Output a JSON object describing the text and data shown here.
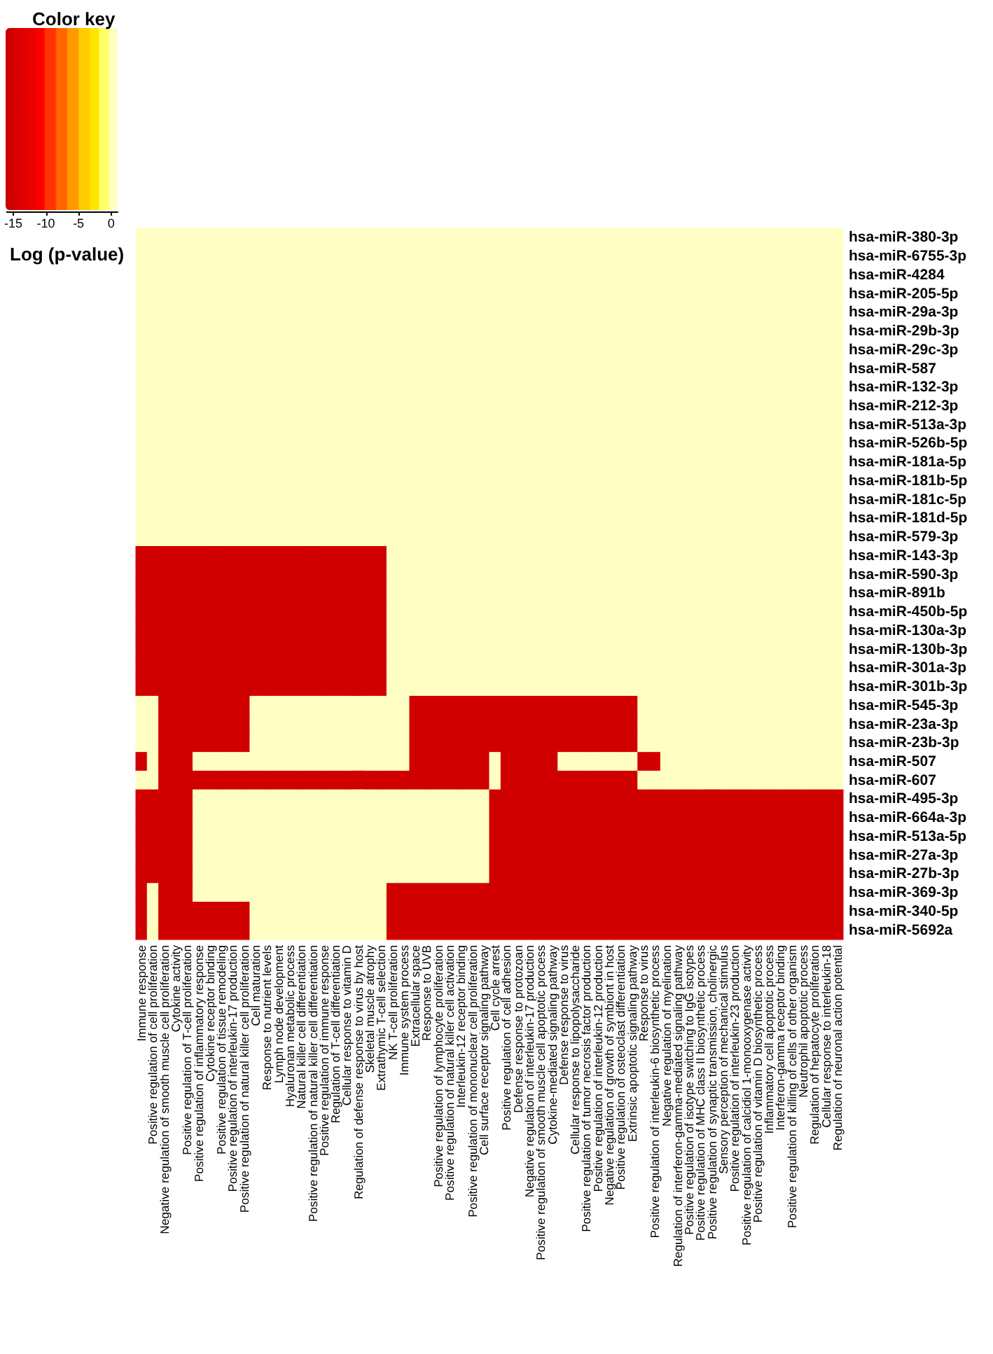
{
  "chart_data": {
    "type": "heatmap",
    "legend_title": "Color key",
    "clabel": "Log (p-value)",
    "clim": [
      -16,
      1
    ],
    "cticks": [
      -15,
      -10,
      -5,
      0
    ],
    "categories": [
      "Immune response",
      "Positive regulation of cell proliferation",
      "Negative regulation of smooth muscle cell proliferation",
      "Cytokine activity",
      "Positive regulation of T-cell proliferation",
      "Positive regulation of inflammatory response",
      "Cytokine receptor binding",
      "Positive regulation of tissue remodeling",
      "Positive regulation of interleukin-17 production",
      "Positive regulation of natural killer cell proliferation",
      "Cell maturation",
      "Response to nutrient levels",
      "Lymph node development",
      "Hyaluronan metabolic process",
      "Natural killer cell differentiation",
      "Positive regulation of natural killer cell differentiation",
      "Positive regulation of immune response",
      "Regulation of T-cell differentiation",
      "Cellular response to vitamin D",
      "Regulation of defense response to virus by host",
      "Skeletal muscle atrophy",
      "Extrathymic T-cell selection",
      "NK T-cell proliferation",
      "Immune system process",
      "Extracellular space",
      "Response to UVB",
      "Positive regulation of lymphocyte proliferation",
      "Positive regulation of natural killer cell activation",
      "Interleukin-12 receptor binding",
      "Positive regulation of mononuclear cell proliferation",
      "Cell surface receptor signaling pathway",
      "Cell cycle arrest",
      "Positive regulation of cell adhesion",
      "Defense response to protozoan",
      "Negative regulation of interleukin-17 production",
      "Positive regulation of smooth muscle cell apoptotic process",
      "Cytokine-mediated signaling pathway",
      "Defense response to virus",
      "Cellular response to lipopolysaccharide",
      "Positive regulation of tumor necrosis factor production",
      "Positive regulation of interleukin-12 production",
      "Negative regulation of growth of symbiont in host",
      "Positive regulation of osteoclast differentiation",
      "Extrinsic apoptotic signaling pathway",
      "Response to virus",
      "Positive regulation of interleukin-6 biosynthetic process",
      "Negative regulation of myelination",
      "Regulation of interferon-gamma-mediated signaling pathway",
      "Positive regulation of isotype switching to IgG isotypes",
      "Positive regulation of MHC class II biosynthetic process",
      "Positive regulation of synaptic transmission, cholinergic",
      "Sensory perception of mechanical stimulus",
      "Positive regulation of interleukin-23 production",
      "Positive regulation of calcidiol 1-monooxygenase activity",
      "Positive regulation of vitamin D biosynthetic process",
      "Inflammatory cell apoptotic process",
      "Interferon-gamma receptor binding",
      "Positive regulation of killing of cells of other organism",
      "Neutrophil apoptotic process",
      "Regulation of hepatocyte proliferation",
      "Cellular response to interleukin-18",
      "Regulation of neuronal action potential"
    ],
    "y_categories": [
      "hsa-miR-380-3p",
      "hsa-miR-6755-3p",
      "hsa-miR-4284",
      "hsa-miR-205-5p",
      "hsa-miR-29a-3p",
      "hsa-miR-29b-3p",
      "hsa-miR-29c-3p",
      "hsa-miR-587",
      "hsa-miR-132-3p",
      "hsa-miR-212-3p",
      "hsa-miR-513a-3p",
      "hsa-miR-526b-5p",
      "hsa-miR-181a-5p",
      "hsa-miR-181b-5p",
      "hsa-miR-181c-5p",
      "hsa-miR-181d-5p",
      "hsa-miR-579-3p",
      "hsa-miR-143-3p",
      "hsa-miR-590-3p",
      "hsa-miR-891b",
      "hsa-miR-450b-5p",
      "hsa-miR-130a-3p",
      "hsa-miR-130b-3p",
      "hsa-miR-301a-3p",
      "hsa-miR-301b-3p",
      "hsa-miR-545-3p",
      "hsa-miR-23a-3p",
      "hsa-miR-23b-3p",
      "hsa-miR-507",
      "hsa-miR-607",
      "hsa-miR-495-3p",
      "hsa-miR-664a-3p",
      "hsa-miR-513a-5p",
      "hsa-miR-27a-3p",
      "hsa-miR-27b-3p",
      "hsa-miR-369-3p",
      "hsa-miR-340-5p",
      "hsa-miR-5692a"
    ],
    "cells": [
      [
        0,
        0,
        0,
        0,
        0,
        0,
        0,
        0,
        0,
        0,
        0,
        0,
        0,
        0,
        0,
        0,
        0,
        0,
        0,
        0,
        0,
        0,
        0,
        0,
        0,
        0,
        0,
        0,
        0,
        0,
        0,
        0,
        0,
        0,
        0,
        0,
        0,
        0,
        0,
        0,
        0,
        0,
        0,
        0,
        0,
        0,
        0,
        0,
        0,
        0,
        0,
        0,
        0,
        0,
        0,
        0,
        0,
        0,
        0,
        0,
        0,
        0
      ],
      [
        0,
        0,
        0,
        0,
        0,
        0,
        0,
        0,
        0,
        0,
        0,
        0,
        0,
        0,
        0,
        0,
        0,
        0,
        0,
        0,
        0,
        0,
        0,
        0,
        0,
        0,
        0,
        0,
        0,
        0,
        0,
        0,
        0,
        0,
        0,
        0,
        0,
        0,
        0,
        0,
        0,
        0,
        0,
        0,
        0,
        0,
        0,
        0,
        0,
        0,
        0,
        0,
        0,
        0,
        0,
        0,
        0,
        0,
        0,
        0,
        0,
        0
      ],
      [
        0,
        0,
        0,
        0,
        0,
        0,
        0,
        0,
        0,
        0,
        0,
        0,
        0,
        0,
        0,
        0,
        0,
        0,
        0,
        0,
        0,
        0,
        0,
        0,
        0,
        0,
        0,
        0,
        0,
        0,
        0,
        0,
        0,
        0,
        0,
        0,
        0,
        0,
        0,
        0,
        0,
        0,
        0,
        0,
        0,
        0,
        0,
        0,
        0,
        0,
        0,
        0,
        0,
        0,
        0,
        0,
        0,
        0,
        0,
        0,
        0,
        0
      ],
      [
        0,
        0,
        0,
        0,
        0,
        0,
        0,
        0,
        0,
        0,
        0,
        0,
        0,
        0,
        0,
        0,
        0,
        0,
        0,
        0,
        0,
        0,
        0,
        0,
        0,
        0,
        0,
        0,
        0,
        0,
        0,
        0,
        0,
        0,
        0,
        0,
        0,
        0,
        0,
        0,
        0,
        0,
        0,
        0,
        0,
        0,
        0,
        0,
        0,
        0,
        0,
        0,
        0,
        0,
        0,
        0,
        0,
        0,
        0,
        0,
        0,
        0
      ],
      [
        0,
        0,
        0,
        0,
        0,
        0,
        0,
        0,
        0,
        0,
        0,
        0,
        0,
        0,
        0,
        0,
        0,
        0,
        0,
        0,
        0,
        0,
        0,
        0,
        0,
        0,
        0,
        0,
        0,
        0,
        0,
        0,
        0,
        0,
        0,
        0,
        0,
        0,
        0,
        0,
        0,
        0,
        0,
        0,
        0,
        0,
        0,
        0,
        0,
        0,
        0,
        0,
        0,
        0,
        0,
        0,
        0,
        0,
        0,
        0,
        0,
        0
      ],
      [
        0,
        0,
        0,
        0,
        0,
        0,
        0,
        0,
        0,
        0,
        0,
        0,
        0,
        0,
        0,
        0,
        0,
        0,
        0,
        0,
        0,
        0,
        0,
        0,
        0,
        0,
        0,
        0,
        0,
        0,
        0,
        0,
        0,
        0,
        0,
        0,
        0,
        0,
        0,
        0,
        0,
        0,
        0,
        0,
        0,
        0,
        0,
        0,
        0,
        0,
        0,
        0,
        0,
        0,
        0,
        0,
        0,
        0,
        0,
        0,
        0,
        0
      ],
      [
        0,
        0,
        0,
        0,
        0,
        0,
        0,
        0,
        0,
        0,
        0,
        0,
        0,
        0,
        0,
        0,
        0,
        0,
        0,
        0,
        0,
        0,
        0,
        0,
        0,
        0,
        0,
        0,
        0,
        0,
        0,
        0,
        0,
        0,
        0,
        0,
        0,
        0,
        0,
        0,
        0,
        0,
        0,
        0,
        0,
        0,
        0,
        0,
        0,
        0,
        0,
        0,
        0,
        0,
        0,
        0,
        0,
        0,
        0,
        0,
        0,
        0
      ],
      [
        0,
        0,
        0,
        0,
        0,
        0,
        0,
        0,
        0,
        0,
        0,
        0,
        0,
        0,
        0,
        0,
        0,
        0,
        0,
        0,
        0,
        0,
        0,
        0,
        0,
        0,
        0,
        0,
        0,
        0,
        0,
        0,
        0,
        0,
        0,
        0,
        0,
        0,
        0,
        0,
        0,
        0,
        0,
        0,
        0,
        0,
        0,
        0,
        0,
        0,
        0,
        0,
        0,
        0,
        0,
        0,
        0,
        0,
        0,
        0,
        0,
        0
      ],
      [
        0,
        0,
        0,
        0,
        0,
        0,
        0,
        0,
        0,
        0,
        0,
        0,
        0,
        0,
        0,
        0,
        0,
        0,
        0,
        0,
        0,
        0,
        0,
        0,
        0,
        0,
        0,
        0,
        0,
        0,
        0,
        0,
        0,
        0,
        0,
        0,
        0,
        0,
        0,
        0,
        0,
        0,
        0,
        0,
        0,
        0,
        0,
        0,
        0,
        0,
        0,
        0,
        0,
        0,
        0,
        0,
        0,
        0,
        0,
        0,
        0,
        0
      ],
      [
        0,
        0,
        0,
        0,
        0,
        0,
        0,
        0,
        0,
        0,
        0,
        0,
        0,
        0,
        0,
        0,
        0,
        0,
        0,
        0,
        0,
        0,
        0,
        0,
        0,
        0,
        0,
        0,
        0,
        0,
        0,
        0,
        0,
        0,
        0,
        0,
        0,
        0,
        0,
        0,
        0,
        0,
        0,
        0,
        0,
        0,
        0,
        0,
        0,
        0,
        0,
        0,
        0,
        0,
        0,
        0,
        0,
        0,
        0,
        0,
        0,
        0
      ],
      [
        0,
        0,
        0,
        0,
        0,
        0,
        0,
        0,
        0,
        0,
        0,
        0,
        0,
        0,
        0,
        0,
        0,
        0,
        0,
        0,
        0,
        0,
        0,
        0,
        0,
        0,
        0,
        0,
        0,
        0,
        0,
        0,
        0,
        0,
        0,
        0,
        0,
        0,
        0,
        0,
        0,
        0,
        0,
        0,
        0,
        0,
        0,
        0,
        0,
        0,
        0,
        0,
        0,
        0,
        0,
        0,
        0,
        0,
        0,
        0,
        0,
        0
      ],
      [
        0,
        0,
        0,
        0,
        0,
        0,
        0,
        0,
        0,
        0,
        0,
        0,
        0,
        0,
        0,
        0,
        0,
        0,
        0,
        0,
        0,
        0,
        0,
        0,
        0,
        0,
        0,
        0,
        0,
        0,
        0,
        0,
        0,
        0,
        0,
        0,
        0,
        0,
        0,
        0,
        0,
        0,
        0,
        0,
        0,
        0,
        0,
        0,
        0,
        0,
        0,
        0,
        0,
        0,
        0,
        0,
        0,
        0,
        0,
        0,
        0,
        0
      ],
      [
        0,
        0,
        0,
        0,
        0,
        0,
        0,
        0,
        0,
        0,
        0,
        0,
        0,
        0,
        0,
        0,
        0,
        0,
        0,
        0,
        0,
        0,
        0,
        0,
        0,
        0,
        0,
        0,
        0,
        0,
        0,
        0,
        0,
        0,
        0,
        0,
        0,
        0,
        0,
        0,
        0,
        0,
        0,
        0,
        0,
        0,
        0,
        0,
        0,
        0,
        0,
        0,
        0,
        0,
        0,
        0,
        0,
        0,
        0,
        0,
        0,
        0
      ],
      [
        0,
        0,
        0,
        0,
        0,
        0,
        0,
        0,
        0,
        0,
        0,
        0,
        0,
        0,
        0,
        0,
        0,
        0,
        0,
        0,
        0,
        0,
        0,
        0,
        0,
        0,
        0,
        0,
        0,
        0,
        0,
        0,
        0,
        0,
        0,
        0,
        0,
        0,
        0,
        0,
        0,
        0,
        0,
        0,
        0,
        0,
        0,
        0,
        0,
        0,
        0,
        0,
        0,
        0,
        0,
        0,
        0,
        0,
        0,
        0,
        0,
        0
      ],
      [
        0,
        0,
        0,
        0,
        0,
        0,
        0,
        0,
        0,
        0,
        0,
        0,
        0,
        0,
        0,
        0,
        0,
        0,
        0,
        0,
        0,
        0,
        0,
        0,
        0,
        0,
        0,
        0,
        0,
        0,
        0,
        0,
        0,
        0,
        0,
        0,
        0,
        0,
        0,
        0,
        0,
        0,
        0,
        0,
        0,
        0,
        0,
        0,
        0,
        0,
        0,
        0,
        0,
        0,
        0,
        0,
        0,
        0,
        0,
        0,
        0,
        0
      ],
      [
        0,
        0,
        0,
        0,
        0,
        0,
        0,
        0,
        0,
        0,
        0,
        0,
        0,
        0,
        0,
        0,
        0,
        0,
        0,
        0,
        0,
        0,
        0,
        0,
        0,
        0,
        0,
        0,
        0,
        0,
        0,
        0,
        0,
        0,
        0,
        0,
        0,
        0,
        0,
        0,
        0,
        0,
        0,
        0,
        0,
        0,
        0,
        0,
        0,
        0,
        0,
        0,
        0,
        0,
        0,
        0,
        0,
        0,
        0,
        0,
        0,
        0
      ],
      [
        0,
        0,
        0,
        0,
        0,
        0,
        0,
        0,
        0,
        0,
        0,
        0,
        0,
        0,
        0,
        0,
        0,
        0,
        0,
        0,
        0,
        0,
        0,
        0,
        0,
        0,
        0,
        0,
        0,
        0,
        0,
        0,
        0,
        0,
        0,
        0,
        0,
        0,
        0,
        0,
        0,
        0,
        0,
        0,
        0,
        0,
        0,
        0,
        0,
        0,
        0,
        0,
        0,
        0,
        0,
        0,
        0,
        0,
        0,
        0,
        0,
        0
      ],
      [
        -15,
        -15,
        -15,
        -15,
        -15,
        -15,
        -15,
        -15,
        -15,
        -15,
        -15,
        -15,
        -15,
        -15,
        -15,
        -15,
        -15,
        -15,
        -15,
        -15,
        -15,
        -15,
        0,
        0,
        0,
        0,
        0,
        0,
        0,
        0,
        0,
        0,
        0,
        0,
        0,
        0,
        0,
        0,
        0,
        0,
        0,
        0,
        0,
        0,
        0,
        0,
        0,
        0,
        0,
        0,
        0,
        0,
        0,
        0,
        0,
        0,
        0,
        0,
        0,
        0,
        0,
        0
      ],
      [
        -15,
        -15,
        -15,
        -15,
        -15,
        -15,
        -15,
        -15,
        -15,
        -15,
        -15,
        -15,
        -15,
        -15,
        -15,
        -15,
        -15,
        -15,
        -15,
        -15,
        -15,
        -15,
        0,
        0,
        0,
        0,
        0,
        0,
        0,
        0,
        0,
        0,
        0,
        0,
        0,
        0,
        0,
        0,
        0,
        0,
        0,
        0,
        0,
        0,
        0,
        0,
        0,
        0,
        0,
        0,
        0,
        0,
        0,
        0,
        0,
        0,
        0,
        0,
        0,
        0,
        0,
        0
      ],
      [
        -15,
        -15,
        -15,
        -15,
        -15,
        -15,
        -15,
        -15,
        -15,
        -15,
        -15,
        -15,
        -15,
        -15,
        -15,
        -15,
        -15,
        -15,
        -15,
        -15,
        -15,
        -15,
        0,
        0,
        0,
        0,
        0,
        0,
        0,
        0,
        0,
        0,
        0,
        0,
        0,
        0,
        0,
        0,
        0,
        0,
        0,
        0,
        0,
        0,
        0,
        0,
        0,
        0,
        0,
        0,
        0,
        0,
        0,
        0,
        0,
        0,
        0,
        0,
        0,
        0,
        0,
        0
      ],
      [
        -15,
        -15,
        -15,
        -15,
        -15,
        -15,
        -15,
        -15,
        -15,
        -15,
        -15,
        -15,
        -15,
        -15,
        -15,
        -15,
        -15,
        -15,
        -15,
        -15,
        -15,
        -15,
        0,
        0,
        0,
        0,
        0,
        0,
        0,
        0,
        0,
        0,
        0,
        0,
        0,
        0,
        0,
        0,
        0,
        0,
        0,
        0,
        0,
        0,
        0,
        0,
        0,
        0,
        0,
        0,
        0,
        0,
        0,
        0,
        0,
        0,
        0,
        0,
        0,
        0,
        0,
        0
      ],
      [
        -15,
        -15,
        -15,
        -15,
        -15,
        -15,
        -15,
        -15,
        -15,
        -15,
        -15,
        -15,
        -15,
        -15,
        -15,
        -15,
        -15,
        -15,
        -15,
        -15,
        -15,
        -15,
        0,
        0,
        0,
        0,
        0,
        0,
        0,
        0,
        0,
        0,
        0,
        0,
        0,
        0,
        0,
        0,
        0,
        0,
        0,
        0,
        0,
        0,
        0,
        0,
        0,
        0,
        0,
        0,
        0,
        0,
        0,
        0,
        0,
        0,
        0,
        0,
        0,
        0,
        0,
        0
      ],
      [
        -15,
        -15,
        -15,
        -15,
        -15,
        -15,
        -15,
        -15,
        -15,
        -15,
        -15,
        -15,
        -15,
        -15,
        -15,
        -15,
        -15,
        -15,
        -15,
        -15,
        -15,
        -15,
        0,
        0,
        0,
        0,
        0,
        0,
        0,
        0,
        0,
        0,
        0,
        0,
        0,
        0,
        0,
        0,
        0,
        0,
        0,
        0,
        0,
        0,
        0,
        0,
        0,
        0,
        0,
        0,
        0,
        0,
        0,
        0,
        0,
        0,
        0,
        0,
        0,
        0,
        0,
        0
      ],
      [
        -15,
        -15,
        -15,
        -15,
        -15,
        -15,
        -15,
        -15,
        -15,
        -15,
        -15,
        -15,
        -15,
        -15,
        -15,
        -15,
        -15,
        -15,
        -15,
        -15,
        -15,
        -15,
        0,
        0,
        0,
        0,
        0,
        0,
        0,
        0,
        0,
        0,
        0,
        0,
        0,
        0,
        0,
        0,
        0,
        0,
        0,
        0,
        0,
        0,
        0,
        0,
        0,
        0,
        0,
        0,
        0,
        0,
        0,
        0,
        0,
        0,
        0,
        0,
        0,
        0,
        0,
        0
      ],
      [
        -15,
        -15,
        -15,
        -15,
        -15,
        -15,
        -15,
        -15,
        -15,
        -15,
        -15,
        -15,
        -15,
        -15,
        -15,
        -15,
        -15,
        -15,
        -15,
        -15,
        -15,
        -15,
        0,
        0,
        0,
        0,
        0,
        0,
        0,
        0,
        0,
        0,
        0,
        0,
        0,
        0,
        0,
        0,
        0,
        0,
        0,
        0,
        0,
        0,
        0,
        0,
        0,
        0,
        0,
        0,
        0,
        0,
        0,
        0,
        0,
        0,
        0,
        0,
        0,
        0,
        0,
        0
      ],
      [
        0,
        0,
        -15,
        -15,
        -15,
        -15,
        -15,
        -15,
        -15,
        -15,
        0,
        0,
        0,
        0,
        0,
        0,
        0,
        0,
        0,
        0,
        0,
        0,
        0,
        0,
        -15,
        -15,
        -15,
        -15,
        -15,
        -15,
        -15,
        -15,
        -15,
        -15,
        -15,
        -15,
        -15,
        -15,
        -15,
        -15,
        -15,
        -15,
        -15,
        -15,
        0,
        0,
        0,
        0,
        0,
        0,
        0,
        0,
        0,
        0,
        0,
        0,
        0,
        0,
        0,
        0,
        0,
        0
      ],
      [
        0,
        0,
        -15,
        -15,
        -15,
        -15,
        -15,
        -15,
        -15,
        -15,
        0,
        0,
        0,
        0,
        0,
        0,
        0,
        0,
        0,
        0,
        0,
        0,
        0,
        0,
        -15,
        -15,
        -15,
        -15,
        -15,
        -15,
        -15,
        -15,
        -15,
        -15,
        -15,
        -15,
        -15,
        -15,
        -15,
        -15,
        -15,
        -15,
        -15,
        -15,
        0,
        0,
        0,
        0,
        0,
        0,
        0,
        0,
        0,
        0,
        0,
        0,
        0,
        0,
        0,
        0,
        0,
        0
      ],
      [
        0,
        0,
        -15,
        -15,
        -15,
        -15,
        -15,
        -15,
        -15,
        -15,
        0,
        0,
        0,
        0,
        0,
        0,
        0,
        0,
        0,
        0,
        0,
        0,
        0,
        0,
        -15,
        -15,
        -15,
        -15,
        -15,
        -15,
        -15,
        -15,
        -15,
        -15,
        -15,
        -15,
        -15,
        -15,
        -15,
        -15,
        -15,
        -15,
        -15,
        -15,
        0,
        0,
        0,
        0,
        0,
        0,
        0,
        0,
        0,
        0,
        0,
        0,
        0,
        0,
        0,
        0,
        0,
        0
      ],
      [
        -15,
        0,
        -15,
        -15,
        -15,
        0,
        0,
        0,
        0,
        0,
        0,
        0,
        0,
        0,
        0,
        0,
        0,
        0,
        0,
        0,
        0,
        0,
        0,
        0,
        -15,
        -15,
        -15,
        -15,
        -15,
        -15,
        -15,
        0,
        -15,
        -15,
        -15,
        -15,
        -15,
        0,
        0,
        0,
        0,
        0,
        0,
        0,
        -15,
        -15,
        0,
        0,
        0,
        0,
        0,
        0,
        0,
        0,
        0,
        0,
        0,
        0,
        0,
        0,
        0,
        0
      ],
      [
        0,
        0,
        -15,
        -15,
        -15,
        -15,
        -15,
        -15,
        -15,
        -15,
        -15,
        -15,
        -15,
        -15,
        -15,
        -15,
        -15,
        -15,
        -15,
        -15,
        -15,
        -15,
        -15,
        -15,
        -15,
        -15,
        -15,
        -15,
        -15,
        -15,
        -15,
        0,
        -15,
        -15,
        -15,
        -15,
        -15,
        -15,
        -15,
        -15,
        -15,
        -15,
        -15,
        -15,
        0,
        0,
        0,
        0,
        0,
        0,
        0,
        0,
        0,
        0,
        0,
        0,
        0,
        0,
        0,
        0,
        0,
        0
      ],
      [
        -15,
        -15,
        -15,
        -15,
        -15,
        0,
        0,
        0,
        0,
        0,
        0,
        0,
        0,
        0,
        0,
        0,
        0,
        0,
        0,
        0,
        0,
        0,
        0,
        0,
        0,
        0,
        0,
        0,
        0,
        0,
        0,
        -15,
        -15,
        -15,
        -15,
        -15,
        -15,
        -15,
        -15,
        -15,
        -15,
        -15,
        -15,
        -15,
        -15,
        -15,
        -15,
        -15,
        -15,
        -15,
        -15,
        -15,
        -15,
        -15,
        -15,
        -15,
        -15,
        -15,
        -15,
        -15,
        -15,
        -15
      ],
      [
        -15,
        -15,
        -15,
        -15,
        -15,
        0,
        0,
        0,
        0,
        0,
        0,
        0,
        0,
        0,
        0,
        0,
        0,
        0,
        0,
        0,
        0,
        0,
        0,
        0,
        0,
        0,
        0,
        0,
        0,
        0,
        0,
        -15,
        -15,
        -15,
        -15,
        -15,
        -15,
        -15,
        -15,
        -15,
        -15,
        -15,
        -15,
        -15,
        -15,
        -15,
        -15,
        -15,
        -15,
        -15,
        -15,
        -15,
        -15,
        -15,
        -15,
        -15,
        -15,
        -15,
        -15,
        -15,
        -15,
        -15
      ],
      [
        -15,
        -15,
        -15,
        -15,
        -15,
        0,
        0,
        0,
        0,
        0,
        0,
        0,
        0,
        0,
        0,
        0,
        0,
        0,
        0,
        0,
        0,
        0,
        0,
        0,
        0,
        0,
        0,
        0,
        0,
        0,
        0,
        -15,
        -15,
        -15,
        -15,
        -15,
        -15,
        -15,
        -15,
        -15,
        -15,
        -15,
        -15,
        -15,
        -15,
        -15,
        -15,
        -15,
        -15,
        -15,
        -15,
        -15,
        -15,
        -15,
        -15,
        -15,
        -15,
        -15,
        -15,
        -15,
        -15,
        -15
      ],
      [
        -15,
        -15,
        -15,
        -15,
        -15,
        0,
        0,
        0,
        0,
        0,
        0,
        0,
        0,
        0,
        0,
        0,
        0,
        0,
        0,
        0,
        0,
        0,
        0,
        0,
        0,
        0,
        0,
        0,
        0,
        0,
        0,
        -15,
        -15,
        -15,
        -15,
        -15,
        -15,
        -15,
        -15,
        -15,
        -15,
        -15,
        -15,
        -15,
        -15,
        -15,
        -15,
        -15,
        -15,
        -15,
        -15,
        -15,
        -15,
        -15,
        -15,
        -15,
        -15,
        -15,
        -15,
        -15,
        -15,
        -15
      ],
      [
        -15,
        -15,
        -15,
        -15,
        -15,
        0,
        0,
        0,
        0,
        0,
        0,
        0,
        0,
        0,
        0,
        0,
        0,
        0,
        0,
        0,
        0,
        0,
        0,
        0,
        0,
        0,
        0,
        0,
        0,
        0,
        0,
        -15,
        -15,
        -15,
        -15,
        -15,
        -15,
        -15,
        -15,
        -15,
        -15,
        -15,
        -15,
        -15,
        -15,
        -15,
        -15,
        -15,
        -15,
        -15,
        -15,
        -15,
        -15,
        -15,
        -15,
        -15,
        -15,
        -15,
        -15,
        -15,
        -15,
        -15
      ],
      [
        -15,
        0,
        -15,
        -15,
        -15,
        0,
        0,
        0,
        0,
        0,
        0,
        0,
        0,
        0,
        0,
        0,
        0,
        0,
        0,
        0,
        0,
        0,
        -15,
        -15,
        -15,
        -15,
        -15,
        -15,
        -15,
        -15,
        -15,
        -15,
        -15,
        -15,
        -15,
        -15,
        -15,
        -15,
        -15,
        -15,
        -15,
        -15,
        -15,
        -15,
        -15,
        -15,
        -15,
        -15,
        -15,
        -15,
        -15,
        -15,
        -15,
        -15,
        -15,
        -15,
        -15,
        -15,
        -15,
        -15,
        -15,
        -15
      ],
      [
        -15,
        0,
        -15,
        -15,
        -15,
        -15,
        -15,
        -15,
        -15,
        -15,
        0,
        0,
        0,
        0,
        0,
        0,
        0,
        0,
        0,
        0,
        0,
        0,
        -15,
        -15,
        -15,
        -15,
        -15,
        -15,
        -15,
        -15,
        -15,
        -15,
        -15,
        -15,
        -15,
        -15,
        -15,
        -15,
        -15,
        -15,
        -15,
        -15,
        -15,
        -15,
        -15,
        -15,
        -15,
        -15,
        -15,
        -15,
        -15,
        -15,
        -15,
        -15,
        -15,
        -15,
        -15,
        -15,
        -15,
        -15,
        -15,
        -15
      ],
      [
        -15,
        0,
        -15,
        -15,
        -15,
        -15,
        -15,
        -15,
        -15,
        -15,
        0,
        0,
        0,
        0,
        0,
        0,
        0,
        0,
        0,
        0,
        0,
        0,
        -15,
        -15,
        -15,
        -15,
        -15,
        -15,
        -15,
        -15,
        -15,
        -15,
        -15,
        -15,
        -15,
        -15,
        -15,
        -15,
        -15,
        -15,
        -15,
        -15,
        -15,
        -15,
        -15,
        -15,
        -15,
        -15,
        -15,
        -15,
        -15,
        -15,
        -15,
        -15,
        -15,
        -15,
        -15,
        -15,
        -15,
        -15,
        -15,
        -15
      ]
    ]
  }
}
